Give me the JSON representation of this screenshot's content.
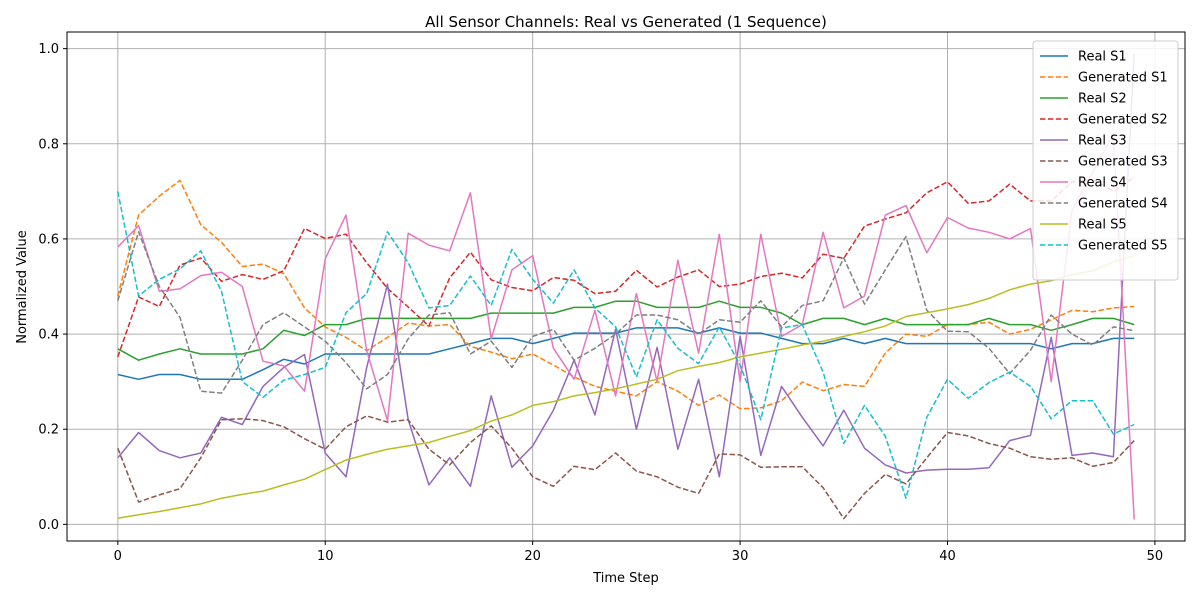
{
  "chart_data": {
    "type": "line",
    "title": "All Sensor Channels: Real vs Generated (1 Sequence)",
    "xlabel": "Time Step",
    "ylabel": "Normalized Value",
    "xlim": [
      -2.45,
      51.45
    ],
    "ylim": [
      -0.035,
      1.035
    ],
    "xticks": [
      0,
      10,
      20,
      30,
      40,
      50
    ],
    "yticks": [
      0.0,
      0.2,
      0.4,
      0.6,
      0.8,
      1.0
    ],
    "xtick_labels": [
      "0",
      "10",
      "20",
      "30",
      "40",
      "50"
    ],
    "ytick_labels": [
      "0.0",
      "0.2",
      "0.4",
      "0.6",
      "0.8",
      "1.0"
    ],
    "grid": true,
    "legend_position": "top-right",
    "series": [
      {
        "name": "Real S1",
        "color": "#1f77b4",
        "dash": "solid",
        "values": [
          0.315,
          0.305,
          0.315,
          0.315,
          0.305,
          0.305,
          0.305,
          0.325,
          0.347,
          0.337,
          0.358,
          0.358,
          0.358,
          0.358,
          0.358,
          0.358,
          0.369,
          0.38,
          0.391,
          0.391,
          0.38,
          0.391,
          0.402,
          0.402,
          0.402,
          0.413,
          0.413,
          0.413,
          0.402,
          0.413,
          0.402,
          0.402,
          0.391,
          0.38,
          0.38,
          0.391,
          0.38,
          0.391,
          0.38,
          0.38,
          0.38,
          0.38,
          0.38,
          0.38,
          0.38,
          0.369,
          0.38,
          0.38,
          0.391,
          0.391
        ]
      },
      {
        "name": "Generated S1",
        "color": "#ff7f0e",
        "dash": "dashed",
        "values": [
          0.48,
          0.65,
          0.69,
          0.723,
          0.63,
          0.593,
          0.542,
          0.547,
          0.527,
          0.455,
          0.415,
          0.393,
          0.365,
          0.393,
          0.423,
          0.417,
          0.42,
          0.374,
          0.362,
          0.348,
          0.358,
          0.335,
          0.31,
          0.29,
          0.28,
          0.27,
          0.3,
          0.28,
          0.25,
          0.272,
          0.243,
          0.245,
          0.26,
          0.299,
          0.281,
          0.294,
          0.29,
          0.36,
          0.4,
          0.395,
          0.42,
          0.42,
          0.425,
          0.4,
          0.41,
          0.43,
          0.45,
          0.447,
          0.455,
          0.458
        ]
      },
      {
        "name": "Real S2",
        "color": "#2ca02c",
        "dash": "solid",
        "values": [
          0.369,
          0.345,
          0.358,
          0.369,
          0.358,
          0.358,
          0.358,
          0.369,
          0.408,
          0.397,
          0.42,
          0.42,
          0.433,
          0.433,
          0.433,
          0.433,
          0.433,
          0.433,
          0.444,
          0.444,
          0.444,
          0.444,
          0.456,
          0.456,
          0.469,
          0.469,
          0.456,
          0.456,
          0.456,
          0.469,
          0.456,
          0.456,
          0.444,
          0.42,
          0.433,
          0.433,
          0.42,
          0.433,
          0.42,
          0.42,
          0.42,
          0.42,
          0.433,
          0.42,
          0.42,
          0.408,
          0.42,
          0.433,
          0.433,
          0.42
        ]
      },
      {
        "name": "Generated S2",
        "color": "#d62728",
        "dash": "dashed",
        "values": [
          0.352,
          0.478,
          0.458,
          0.545,
          0.56,
          0.511,
          0.525,
          0.515,
          0.533,
          0.622,
          0.601,
          0.61,
          0.55,
          0.496,
          0.457,
          0.417,
          0.518,
          0.572,
          0.514,
          0.498,
          0.491,
          0.519,
          0.513,
          0.485,
          0.49,
          0.534,
          0.499,
          0.52,
          0.535,
          0.5,
          0.505,
          0.521,
          0.528,
          0.518,
          0.568,
          0.559,
          0.627,
          0.642,
          0.655,
          0.697,
          0.72,
          0.675,
          0.68,
          0.715,
          0.68,
          0.68,
          0.72,
          0.725,
          0.7,
          0.73
        ]
      },
      {
        "name": "Real S3",
        "color": "#9467bd",
        "dash": "solid",
        "values": [
          0.14,
          0.193,
          0.155,
          0.14,
          0.15,
          0.225,
          0.21,
          0.29,
          0.33,
          0.357,
          0.15,
          0.1,
          0.33,
          0.505,
          0.22,
          0.083,
          0.14,
          0.08,
          0.27,
          0.12,
          0.165,
          0.24,
          0.345,
          0.23,
          0.41,
          0.2,
          0.372,
          0.158,
          0.305,
          0.1,
          0.395,
          0.145,
          0.29,
          0.225,
          0.165,
          0.24,
          0.16,
          0.125,
          0.108,
          0.114,
          0.116,
          0.116,
          0.119,
          0.176,
          0.187,
          0.393,
          0.145,
          0.15,
          0.142,
          0.99
        ]
      },
      {
        "name": "Generated S3",
        "color": "#8c564b",
        "dash": "dashed",
        "values": [
          0.16,
          0.047,
          0.062,
          0.075,
          0.14,
          0.22,
          0.222,
          0.218,
          0.205,
          0.18,
          0.158,
          0.205,
          0.228,
          0.215,
          0.22,
          0.158,
          0.125,
          0.172,
          0.207,
          0.16,
          0.1,
          0.08,
          0.122,
          0.115,
          0.15,
          0.112,
          0.1,
          0.078,
          0.065,
          0.148,
          0.146,
          0.12,
          0.121,
          0.121,
          0.077,
          0.012,
          0.065,
          0.105,
          0.085,
          0.14,
          0.193,
          0.186,
          0.17,
          0.16,
          0.142,
          0.137,
          0.14,
          0.122,
          0.13,
          0.176
        ]
      },
      {
        "name": "Real S4",
        "color": "#e377c2",
        "dash": "solid",
        "values": [
          0.583,
          0.628,
          0.49,
          0.495,
          0.523,
          0.53,
          0.5,
          0.343,
          0.333,
          0.28,
          0.558,
          0.65,
          0.365,
          0.218,
          0.612,
          0.587,
          0.575,
          0.697,
          0.39,
          0.535,
          0.565,
          0.37,
          0.305,
          0.45,
          0.27,
          0.485,
          0.3,
          0.555,
          0.36,
          0.61,
          0.3,
          0.61,
          0.395,
          0.42,
          0.614,
          0.455,
          0.48,
          0.65,
          0.67,
          0.571,
          0.645,
          0.623,
          0.614,
          0.6,
          0.622,
          0.3,
          0.66,
          0.74,
          0.82,
          0.01
        ]
      },
      {
        "name": "Generated S4",
        "color": "#7f7f7f",
        "dash": "dashed",
        "values": [
          0.47,
          0.615,
          0.5,
          0.435,
          0.28,
          0.276,
          0.345,
          0.42,
          0.445,
          0.415,
          0.385,
          0.34,
          0.285,
          0.315,
          0.39,
          0.44,
          0.445,
          0.358,
          0.385,
          0.33,
          0.395,
          0.41,
          0.345,
          0.37,
          0.4,
          0.44,
          0.44,
          0.43,
          0.4,
          0.43,
          0.425,
          0.47,
          0.415,
          0.46,
          0.47,
          0.56,
          0.463,
          0.535,
          0.605,
          0.45,
          0.406,
          0.405,
          0.37,
          0.317,
          0.366,
          0.44,
          0.4,
          0.377,
          0.415,
          0.407
        ]
      },
      {
        "name": "Real S5",
        "color": "#bcbd22",
        "dash": "solid",
        "values": [
          0.013,
          0.02,
          0.027,
          0.035,
          0.043,
          0.055,
          0.063,
          0.07,
          0.083,
          0.095,
          0.115,
          0.135,
          0.147,
          0.158,
          0.165,
          0.172,
          0.185,
          0.197,
          0.217,
          0.23,
          0.25,
          0.258,
          0.27,
          0.277,
          0.285,
          0.295,
          0.305,
          0.323,
          0.332,
          0.34,
          0.352,
          0.36,
          0.368,
          0.377,
          0.385,
          0.395,
          0.405,
          0.417,
          0.437,
          0.445,
          0.453,
          0.462,
          0.475,
          0.493,
          0.505,
          0.512,
          0.525,
          0.533,
          0.552,
          0.565
        ]
      },
      {
        "name": "Generated S5",
        "color": "#17becf",
        "dash": "dashed",
        "values": [
          0.7,
          0.48,
          0.515,
          0.537,
          0.575,
          0.49,
          0.3,
          0.267,
          0.303,
          0.315,
          0.33,
          0.445,
          0.485,
          0.615,
          0.55,
          0.455,
          0.46,
          0.522,
          0.46,
          0.578,
          0.515,
          0.465,
          0.535,
          0.455,
          0.415,
          0.31,
          0.43,
          0.37,
          0.338,
          0.415,
          0.335,
          0.22,
          0.413,
          0.42,
          0.32,
          0.17,
          0.25,
          0.185,
          0.055,
          0.225,
          0.305,
          0.265,
          0.298,
          0.32,
          0.29,
          0.222,
          0.26,
          0.26,
          0.19,
          0.21
        ]
      }
    ]
  }
}
